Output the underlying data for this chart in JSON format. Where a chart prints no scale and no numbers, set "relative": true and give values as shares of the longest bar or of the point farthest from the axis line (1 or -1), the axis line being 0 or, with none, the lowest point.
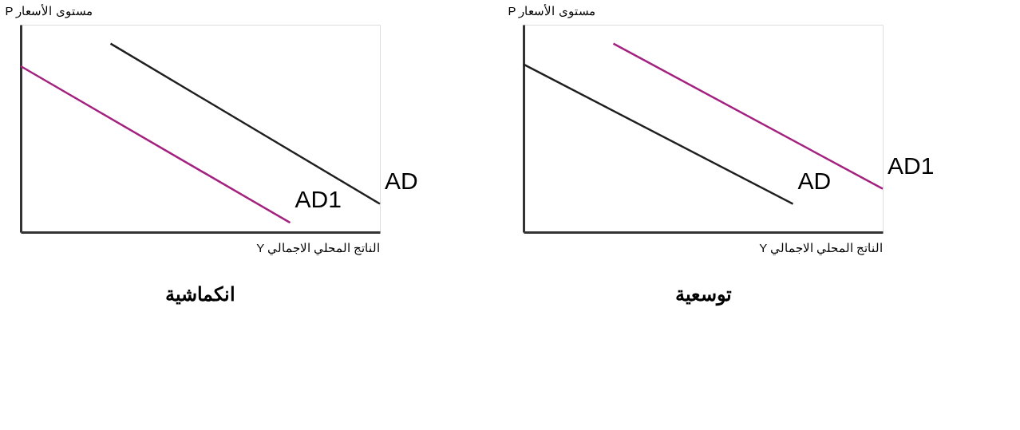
{
  "chart_data": [
    {
      "type": "line",
      "title": "انكماشية",
      "xlabel": "Y الناتج المحلي الاجمالي",
      "ylabel": "P مستوى الأسعار",
      "relative": true,
      "categories": [
        null,
        null,
        null,
        null,
        null
      ],
      "legend": false,
      "tick_labels": false,
      "marker": "none",
      "line_style": "solid",
      "series": [
        {
          "name": "AD",
          "color": "#1f1f1f",
          "values": [
            null,
            1.0,
            null,
            null,
            0.15
          ]
        },
        {
          "name": "AD1",
          "color": "#a3217f",
          "values": [
            0.88,
            null,
            null,
            0.05,
            null
          ]
        }
      ]
    },
    {
      "type": "line",
      "title": "توسعية",
      "xlabel": "Y الناتج المحلي الاجمالي",
      "ylabel": "P مستوى الأسعار",
      "relative": true,
      "categories": [
        null,
        null,
        null,
        null,
        null
      ],
      "legend": false,
      "tick_labels": false,
      "marker": "none",
      "line_style": "solid",
      "series": [
        {
          "name": "AD",
          "color": "#1f1f1f",
          "values": [
            0.89,
            null,
            null,
            0.15,
            null
          ]
        },
        {
          "name": "AD1",
          "color": "#a3217f",
          "values": [
            null,
            1.0,
            null,
            null,
            0.23
          ]
        }
      ]
    }
  ]
}
